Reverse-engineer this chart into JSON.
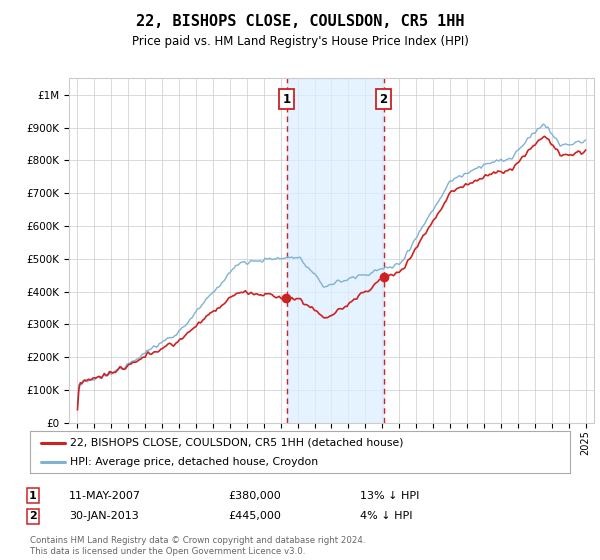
{
  "title": "22, BISHOPS CLOSE, COULSDON, CR5 1HH",
  "subtitle": "Price paid vs. HM Land Registry's House Price Index (HPI)",
  "hpi_label": "HPI: Average price, detached house, Croydon",
  "price_label": "22, BISHOPS CLOSE, COULSDON, CR5 1HH (detached house)",
  "hpi_color": "#7fb3d3",
  "price_color": "#cc2222",
  "purchase1_date_x": 2007.36,
  "purchase1_price": 380000,
  "purchase2_date_x": 2013.08,
  "purchase2_price": 445000,
  "ylim": [
    0,
    1050000
  ],
  "xlim": [
    1994.5,
    2025.5
  ],
  "background_color": "#ffffff",
  "grid_color": "#cccccc",
  "shade_color": "#ddeeff",
  "footnote_color": "#666666"
}
